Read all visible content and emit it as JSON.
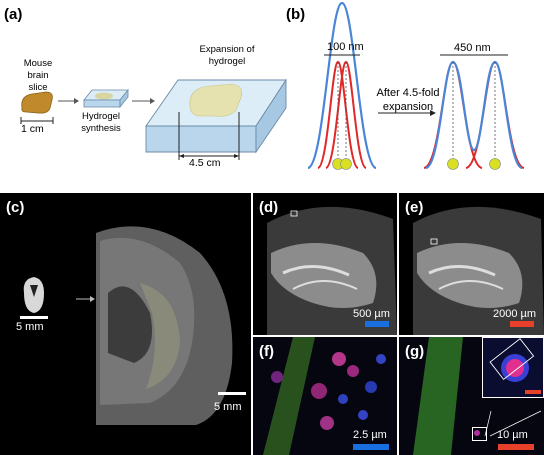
{
  "panel_labels": {
    "a": "(a)",
    "b": "(b)",
    "c": "(c)",
    "d": "(d)",
    "e": "(e)",
    "f": "(f)",
    "g": "(g)"
  },
  "panel_a": {
    "slice_label_line1": "Mouse",
    "slice_label_line2": "brain slice",
    "slice_scale": "1 cm",
    "synth_line1": "Hydrogel",
    "synth_line2": "synthesis",
    "expansion_line1": "Expansion of",
    "expansion_line2": "hydrogel",
    "expanded_scale": "4.5 cm"
  },
  "panel_b": {
    "before_distance": "100 nm",
    "after_distance": "450 nm",
    "arrow_line1": "After 4.5-fold",
    "arrow_line2": "expansion"
  },
  "panel_c": {
    "small_scale": "5 mm",
    "large_scale": "5 mm"
  },
  "panel_d": {
    "scale": "500 µm"
  },
  "panel_e": {
    "scale": "2000 µm"
  },
  "panel_f": {
    "scale": "2.5 µm"
  },
  "panel_g": {
    "scale": "10 µm"
  },
  "colors": {
    "blue_curve": "#4a86d8",
    "red_curve": "#e02828",
    "dot_fill": "#d9e021",
    "scalebar_blue": "#1a6fe0",
    "scalebar_red": "#e8402a",
    "hydrogel_box": "#cfe3f1",
    "brain_slice": "#c08a2c"
  }
}
